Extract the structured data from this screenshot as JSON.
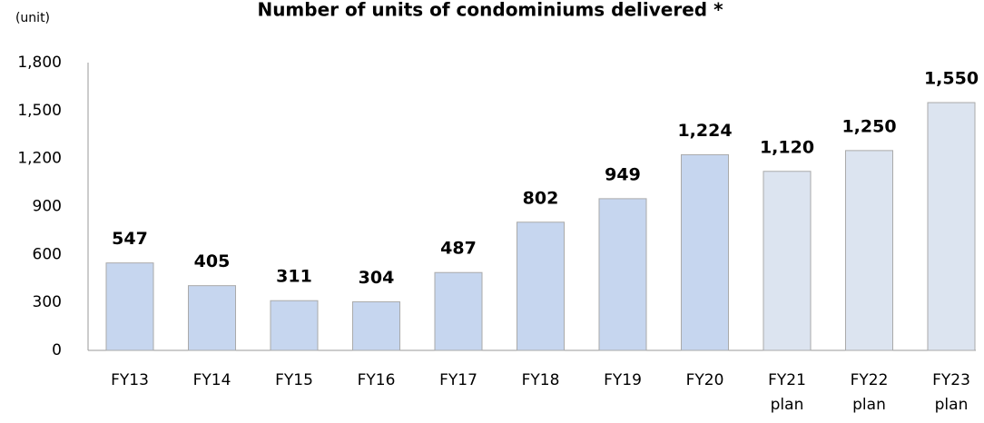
{
  "chart_data": {
    "type": "bar",
    "title": "Number of units of condominiums delivered *",
    "y_unit": "(unit)",
    "categories": [
      "FY13",
      "FY14",
      "FY15",
      "FY16",
      "FY17",
      "FY18",
      "FY19",
      "FY20",
      "FY21 plan",
      "FY22 plan",
      "FY23 plan"
    ],
    "values": [
      547,
      405,
      311,
      304,
      487,
      802,
      949,
      1224,
      1120,
      1250,
      1550
    ],
    "value_labels": [
      "547",
      "405",
      "311",
      "304",
      "487",
      "802",
      "949",
      "1,224",
      "1,120",
      "1,250",
      "1,550"
    ],
    "colors": [
      "#c6d6ef",
      "#c6d6ef",
      "#c6d6ef",
      "#c6d6ef",
      "#c6d6ef",
      "#c6d6ef",
      "#c6d6ef",
      "#c6d6ef",
      "#dce4f0",
      "#dce4f0",
      "#dce4f0"
    ],
    "ylim": [
      0,
      1800
    ],
    "yticks": [
      0,
      300,
      600,
      900,
      {
        "value": 1200,
        "label": "1,200"
      },
      {
        "value": 1500,
        "label": "1,500"
      },
      {
        "value": 1800,
        "label": "1,800"
      }
    ],
    "grid": false
  }
}
